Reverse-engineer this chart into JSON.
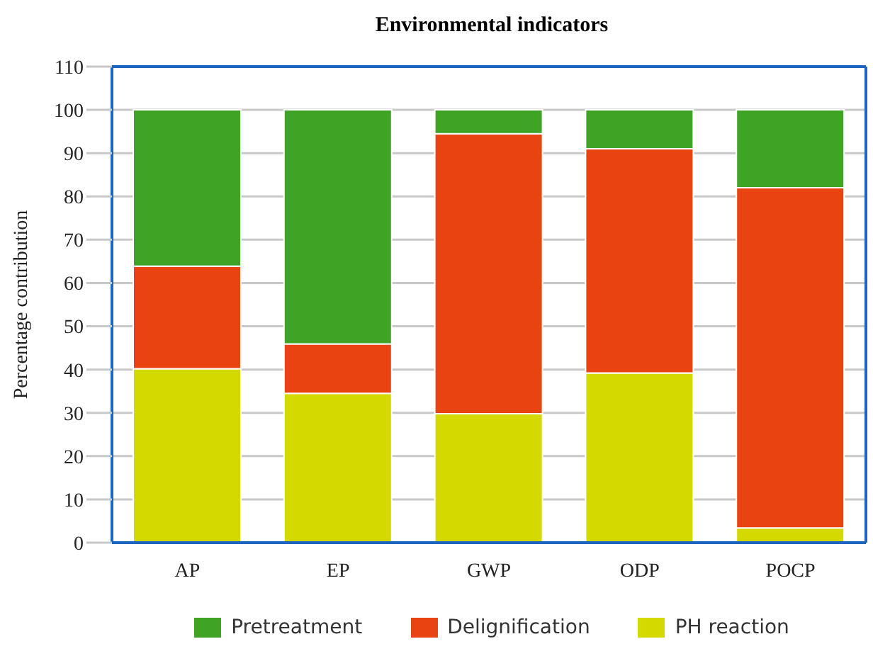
{
  "chart_data": {
    "type": "bar",
    "title": "Environmental indicators",
    "ylabel": "Percentage contribution",
    "categories": [
      "AP",
      "EP",
      "GWP",
      "ODP",
      "POCP"
    ],
    "stacked": true,
    "series": [
      {
        "name": "PH reaction",
        "color": "#d4d900",
        "values": [
          40.2,
          34.5,
          29.8,
          39.2,
          3.4
        ]
      },
      {
        "name": "Delignification",
        "color": "#e84310",
        "values": [
          23.7,
          11.4,
          64.7,
          51.8,
          78.6
        ]
      },
      {
        "name": "Pretreatment",
        "color": "#3fa326",
        "values": [
          36.1,
          54.1,
          5.5,
          9.0,
          18.0
        ]
      }
    ],
    "ylim": [
      0,
      110
    ],
    "yticks": [
      0,
      10,
      20,
      30,
      40,
      50,
      60,
      70,
      80,
      90,
      100,
      110
    ],
    "grid": "y",
    "legend": "bottom"
  }
}
